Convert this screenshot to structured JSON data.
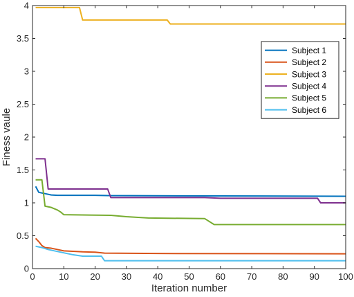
{
  "chart_data": {
    "type": "line",
    "xlabel": "Iteration number",
    "ylabel": "Finess vaule",
    "xlim": [
      0,
      100
    ],
    "ylim": [
      0,
      4
    ],
    "xticks": [
      0,
      10,
      20,
      30,
      40,
      50,
      60,
      70,
      80,
      90,
      100
    ],
    "yticks": [
      0,
      0.5,
      1,
      1.5,
      2,
      2.5,
      3,
      3.5,
      4
    ],
    "grid": false,
    "legend_position": "upper-right",
    "series": [
      {
        "name": "Subject 1",
        "color": "#0072BD",
        "points": [
          [
            1,
            1.25
          ],
          [
            2,
            1.16
          ],
          [
            4,
            1.14
          ],
          [
            6,
            1.12
          ],
          [
            8,
            1.115
          ],
          [
            20,
            1.115
          ],
          [
            24,
            1.11
          ],
          [
            60,
            1.105
          ],
          [
            100,
            1.1
          ]
        ]
      },
      {
        "name": "Subject 2",
        "color": "#D95319",
        "points": [
          [
            1,
            0.46
          ],
          [
            2,
            0.41
          ],
          [
            3,
            0.35
          ],
          [
            4,
            0.32
          ],
          [
            6,
            0.31
          ],
          [
            8,
            0.29
          ],
          [
            10,
            0.27
          ],
          [
            14,
            0.26
          ],
          [
            16,
            0.255
          ],
          [
            20,
            0.25
          ],
          [
            23,
            0.235
          ],
          [
            40,
            0.23
          ],
          [
            100,
            0.225
          ]
        ]
      },
      {
        "name": "Subject 3",
        "color": "#EDB120",
        "points": [
          [
            1,
            3.97
          ],
          [
            15,
            3.97
          ],
          [
            16,
            3.78
          ],
          [
            43,
            3.78
          ],
          [
            44,
            3.72
          ],
          [
            100,
            3.72
          ]
        ]
      },
      {
        "name": "Subject 4",
        "color": "#7E2F8E",
        "points": [
          [
            1,
            1.67
          ],
          [
            4,
            1.67
          ],
          [
            5,
            1.21
          ],
          [
            24,
            1.21
          ],
          [
            25,
            1.08
          ],
          [
            55,
            1.08
          ],
          [
            60,
            1.07
          ],
          [
            91,
            1.07
          ],
          [
            92,
            1.0
          ],
          [
            100,
            1.0
          ]
        ]
      },
      {
        "name": "Subject 5",
        "color": "#77AC30",
        "points": [
          [
            1,
            1.35
          ],
          [
            3,
            1.35
          ],
          [
            4,
            0.95
          ],
          [
            6,
            0.93
          ],
          [
            8,
            0.89
          ],
          [
            9,
            0.86
          ],
          [
            10,
            0.82
          ],
          [
            25,
            0.81
          ],
          [
            30,
            0.79
          ],
          [
            37,
            0.77
          ],
          [
            55,
            0.76
          ],
          [
            58,
            0.67
          ],
          [
            100,
            0.67
          ]
        ]
      },
      {
        "name": "Subject 6",
        "color": "#4DBEEE",
        "points": [
          [
            1,
            0.34
          ],
          [
            3,
            0.32
          ],
          [
            5,
            0.29
          ],
          [
            8,
            0.26
          ],
          [
            10,
            0.24
          ],
          [
            13,
            0.21
          ],
          [
            16,
            0.19
          ],
          [
            22,
            0.19
          ],
          [
            23,
            0.12
          ],
          [
            100,
            0.12
          ]
        ]
      }
    ]
  }
}
